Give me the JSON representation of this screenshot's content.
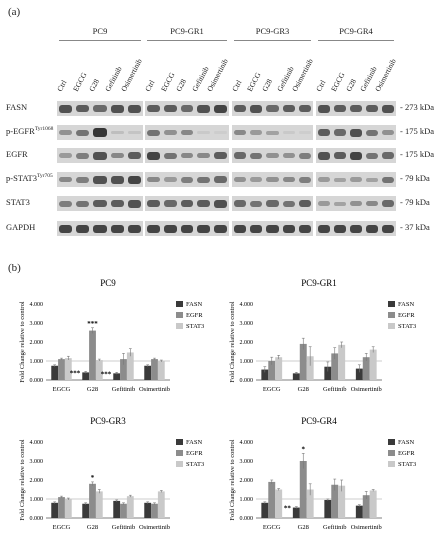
{
  "panel_a": {
    "label": "(a)",
    "groups": [
      "PC9",
      "PC9-GR1",
      "PC9-GR3",
      "PC9-GR4"
    ],
    "lanes": [
      "Ctrl",
      "EGCG",
      "G28",
      "Gefitinib",
      "Osimertinib"
    ],
    "proteins": [
      {
        "name": "FASN",
        "sup": "",
        "kda": "- 273 kDa"
      },
      {
        "name": "p-EGFR",
        "sup": "Tyr1068",
        "kda": "- 175 kDa"
      },
      {
        "name": "EGFR",
        "sup": "",
        "kda": "- 175 kDa"
      },
      {
        "name": "p-STAT3",
        "sup": "Tyr705",
        "kda": "- 79 kDa"
      },
      {
        "name": "STAT3",
        "sup": "",
        "kda": "- 79 kDa"
      },
      {
        "name": "GAPDH",
        "sup": "",
        "kda": "- 37 kDa"
      }
    ],
    "band_intensity": [
      [
        [
          0.85,
          0.8,
          0.75,
          0.85,
          0.85
        ],
        [
          0.8,
          0.8,
          0.75,
          0.85,
          0.9
        ],
        [
          0.8,
          0.85,
          0.75,
          0.8,
          0.8
        ],
        [
          0.85,
          0.8,
          0.8,
          0.8,
          0.85
        ]
      ],
      [
        [
          0.55,
          0.7,
          0.95,
          0.25,
          0.2
        ],
        [
          0.7,
          0.55,
          0.6,
          0.15,
          0.1
        ],
        [
          0.6,
          0.5,
          0.45,
          0.15,
          0.1
        ],
        [
          0.8,
          0.75,
          0.85,
          0.7,
          0.55
        ]
      ],
      [
        [
          0.5,
          0.65,
          0.85,
          0.6,
          0.8
        ],
        [
          0.9,
          0.7,
          0.6,
          0.6,
          0.8
        ],
        [
          0.75,
          0.7,
          0.55,
          0.55,
          0.65
        ],
        [
          0.85,
          0.8,
          0.9,
          0.7,
          0.75
        ]
      ],
      [
        [
          0.6,
          0.65,
          0.85,
          0.85,
          0.9
        ],
        [
          0.6,
          0.5,
          0.65,
          0.7,
          0.75
        ],
        [
          0.55,
          0.5,
          0.55,
          0.6,
          0.65
        ],
        [
          0.5,
          0.45,
          0.5,
          0.45,
          0.7
        ]
      ],
      [
        [
          0.65,
          0.7,
          0.8,
          0.8,
          0.85
        ],
        [
          0.8,
          0.75,
          0.8,
          0.8,
          0.85
        ],
        [
          0.75,
          0.7,
          0.75,
          0.7,
          0.8
        ],
        [
          0.5,
          0.45,
          0.55,
          0.6,
          0.75
        ]
      ],
      [
        [
          0.9,
          0.9,
          0.9,
          0.9,
          0.9
        ],
        [
          0.9,
          0.9,
          0.9,
          0.9,
          0.9
        ],
        [
          0.9,
          0.9,
          0.9,
          0.9,
          0.9
        ],
        [
          0.9,
          0.9,
          0.9,
          0.9,
          0.9
        ]
      ]
    ]
  },
  "panel_b": {
    "label": "(b)"
  },
  "chart_data": [
    {
      "type": "bar",
      "title": "PC9",
      "ylabel": "Fold Change relative to control",
      "categories": [
        "EGCG",
        "G28",
        "Gefitinib",
        "Osimertinib"
      ],
      "ylim": [
        0,
        4
      ],
      "yticks": [
        "0.000",
        "1.000",
        "2.000",
        "3.000",
        "4.000"
      ],
      "series": [
        {
          "name": "FASN",
          "color": "#3a3a3a",
          "values": [
            0.75,
            0.4,
            0.35,
            0.75
          ],
          "errors": [
            0.05,
            0.05,
            0.05,
            0.05
          ],
          "stars": [
            "",
            "***",
            "***",
            ""
          ]
        },
        {
          "name": "EGFR",
          "color": "#8c8c8c",
          "values": [
            1.1,
            2.6,
            1.1,
            1.1
          ],
          "errors": [
            0.05,
            0.15,
            0.3,
            0.05
          ],
          "stars": [
            "",
            "***",
            "",
            ""
          ]
        },
        {
          "name": "STAT3",
          "color": "#c9c9c9",
          "values": [
            1.15,
            1.05,
            1.45,
            1.0
          ],
          "errors": [
            0.1,
            0.05,
            0.2,
            0.05
          ],
          "stars": [
            "",
            "",
            "",
            ""
          ]
        }
      ]
    },
    {
      "type": "bar",
      "title": "PC9-GR1",
      "ylabel": "Fold Change relative to control",
      "categories": [
        "EGCG",
        "G28",
        "Gefitinib",
        "Osimertinib"
      ],
      "ylim": [
        0,
        4
      ],
      "yticks": [
        "0.000",
        "1.000",
        "2.000",
        "3.000",
        "4.000"
      ],
      "series": [
        {
          "name": "FASN",
          "color": "#3a3a3a",
          "values": [
            0.55,
            0.35,
            0.7,
            0.6
          ],
          "errors": [
            0.15,
            0.05,
            0.25,
            0.2
          ],
          "stars": [
            "",
            "",
            "",
            ""
          ]
        },
        {
          "name": "EGFR",
          "color": "#8c8c8c",
          "values": [
            1.0,
            1.9,
            1.4,
            1.2
          ],
          "errors": [
            0.2,
            0.3,
            0.3,
            0.2
          ],
          "stars": [
            "",
            "",
            "",
            ""
          ]
        },
        {
          "name": "STAT3",
          "color": "#c9c9c9",
          "values": [
            1.2,
            1.25,
            1.85,
            1.6
          ],
          "errors": [
            0.1,
            0.5,
            0.15,
            0.15
          ],
          "stars": [
            "",
            "",
            "",
            ""
          ]
        }
      ]
    },
    {
      "type": "bar",
      "title": "PC9-GR3",
      "ylabel": "Fold Change relative to control",
      "categories": [
        "EGCG",
        "G28",
        "Gefitinib",
        "Osimertinib"
      ],
      "ylim": [
        0,
        4
      ],
      "yticks": [
        "0.000",
        "1.000",
        "2.000",
        "3.000",
        "4.000"
      ],
      "series": [
        {
          "name": "FASN",
          "color": "#3a3a3a",
          "values": [
            0.8,
            0.75,
            0.9,
            0.8
          ],
          "errors": [
            0.05,
            0.05,
            0.05,
            0.05
          ],
          "stars": [
            "",
            "",
            "",
            ""
          ]
        },
        {
          "name": "EGFR",
          "color": "#8c8c8c",
          "values": [
            1.1,
            1.8,
            0.75,
            0.75
          ],
          "errors": [
            0.05,
            0.1,
            0.05,
            0.05
          ],
          "stars": [
            "",
            "*",
            "",
            ""
          ]
        },
        {
          "name": "STAT3",
          "color": "#c9c9c9",
          "values": [
            1.0,
            1.4,
            1.15,
            1.4
          ],
          "errors": [
            0.05,
            0.1,
            0.05,
            0.05
          ],
          "stars": [
            "",
            "",
            "",
            ""
          ]
        }
      ]
    },
    {
      "type": "bar",
      "title": "PC9-GR4",
      "ylabel": "Fold Change relative to control",
      "categories": [
        "EGCG",
        "G28",
        "Gefitinib",
        "Osimertinib"
      ],
      "ylim": [
        0,
        4
      ],
      "yticks": [
        "0.000",
        "1.000",
        "2.000",
        "3.000",
        "4.000"
      ],
      "series": [
        {
          "name": "FASN",
          "color": "#3a3a3a",
          "values": [
            0.8,
            0.55,
            0.95,
            0.65
          ],
          "errors": [
            0.05,
            0.05,
            0.05,
            0.05
          ],
          "stars": [
            "",
            "**",
            "",
            ""
          ]
        },
        {
          "name": "EGFR",
          "color": "#8c8c8c",
          "values": [
            1.9,
            3.0,
            1.75,
            1.2
          ],
          "errors": [
            0.1,
            0.4,
            0.3,
            0.2
          ],
          "stars": [
            "",
            "*",
            "",
            ""
          ]
        },
        {
          "name": "STAT3",
          "color": "#c9c9c9",
          "values": [
            1.5,
            1.5,
            1.7,
            1.45
          ],
          "errors": [
            0.05,
            0.3,
            0.3,
            0.05
          ],
          "stars": [
            "",
            "",
            "",
            ""
          ]
        }
      ]
    }
  ]
}
